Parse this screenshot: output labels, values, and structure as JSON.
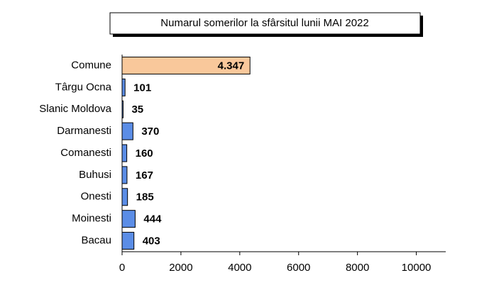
{
  "chart_data": {
    "type": "hbar",
    "title": "Numarul somerilor la sfârsitul lunii MAI 2022",
    "categories": [
      "Comune",
      "Târgu Ocna",
      "Slanic Moldova",
      "Darmanesti",
      "Comanesti",
      "Buhusi",
      "Onesti",
      "Moinesti",
      "Bacau"
    ],
    "values": [
      4347,
      101,
      35,
      370,
      160,
      167,
      185,
      444,
      403
    ],
    "value_labels": [
      "4.347",
      "101",
      "35",
      "370",
      "160",
      "167",
      "185",
      "444",
      "403"
    ],
    "colors": [
      "#f9c89b",
      "#5b8de6",
      "#5b8de6",
      "#5b8de6",
      "#5b8de6",
      "#5b8de6",
      "#5b8de6",
      "#5b8de6",
      "#5b8de6"
    ],
    "xlim": [
      0,
      11000
    ],
    "xticks": [
      0,
      2000,
      4000,
      6000,
      8000,
      10000
    ]
  }
}
